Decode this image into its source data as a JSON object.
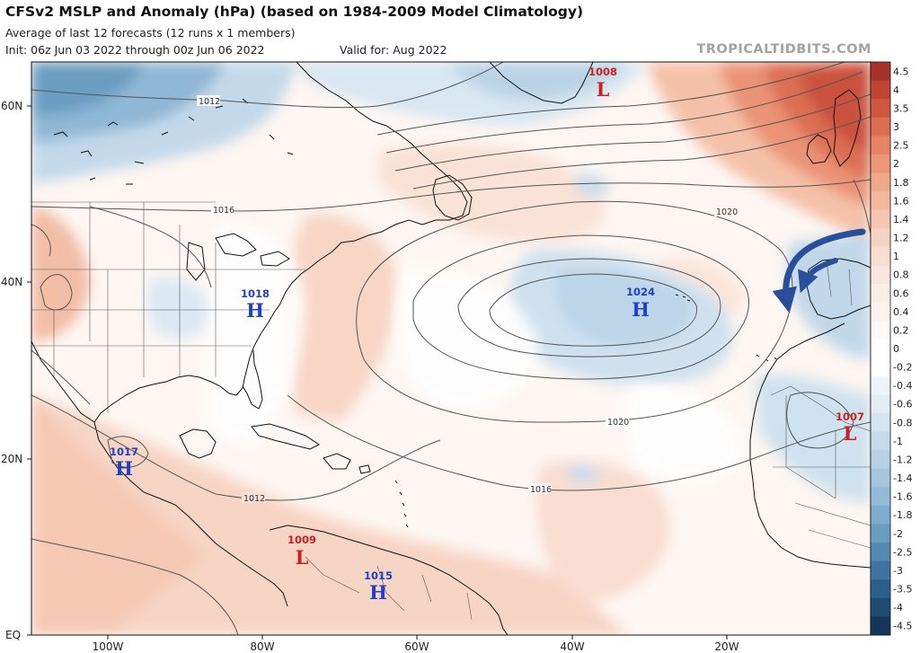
{
  "header": {
    "title": "CFSv2 MSLP and Anomaly (hPa) (based on 1984-2009 Model Climatology)",
    "subtitle": "Average of last 12 forecasts (12 runs x 1 members)",
    "init": "Init: 06z Jun 03 2022 through 00z Jun 06 2022",
    "valid": "Valid for: Aug 2022",
    "brand": "TROPICALTIDBITS.COM"
  },
  "map": {
    "lat_labels": [
      "60N",
      "40N",
      "20N",
      "EQ"
    ],
    "lon_labels": [
      "100W",
      "80W",
      "60W",
      "40W",
      "20W"
    ],
    "isobar_labels": [
      "1012",
      "1016",
      "1020",
      "1020",
      "1016",
      "1012"
    ],
    "pressure_centers": [
      {
        "kind": "low",
        "letter": "L",
        "value": "1008",
        "color": "#cc1f1f"
      },
      {
        "kind": "high",
        "letter": "H",
        "value": "1018",
        "color": "#1f3fcc"
      },
      {
        "kind": "high",
        "letter": "H",
        "value": "1024",
        "color": "#1f3fcc"
      },
      {
        "kind": "high",
        "letter": "H",
        "value": "1017",
        "color": "#1f3fcc"
      },
      {
        "kind": "low",
        "letter": "L",
        "value": "1007",
        "color": "#cc1f1f"
      },
      {
        "kind": "low",
        "letter": "L",
        "value": "1009",
        "color": "#cc1f1f"
      },
      {
        "kind": "high",
        "letter": "H",
        "value": "1015",
        "color": "#1f3fcc"
      }
    ],
    "annotation_arrows": {
      "count": 2,
      "color": "#2a4f9a"
    }
  },
  "colorbar": {
    "labels": [
      "4.5",
      "4",
      "3.5",
      "3",
      "2.5",
      "2",
      "1.8",
      "1.6",
      "1.4",
      "1.2",
      "1",
      "0.8",
      "0.6",
      "0.4",
      "0.2",
      "0",
      "-0.2",
      "-0.4",
      "-0.6",
      "-0.8",
      "-1",
      "-1.2",
      "-1.4",
      "-1.6",
      "-1.8",
      "-2",
      "-2.5",
      "-3",
      "-3.5",
      "-4",
      "-4.5"
    ],
    "colors": [
      "#a8312b",
      "#bf4535",
      "#d0573f",
      "#dd6d52",
      "#e68465",
      "#ec9878",
      "#f0a98b",
      "#f3b89e",
      "#f5c6b1",
      "#f7d3c3",
      "#f9ddd1",
      "#fae6dc",
      "#fcede6",
      "#fdf3ee",
      "#fef9f6",
      "#ffffff",
      "#ffffff",
      "#eef4f9",
      "#e2edf5",
      "#d5e5f0",
      "#c6dbea",
      "#b6d1e4",
      "#a5c6dd",
      "#93bad6",
      "#7faccc",
      "#6a9dc2",
      "#5489b4",
      "#3f74a2",
      "#2d5f8c",
      "#1f4a72",
      "#13365a"
    ]
  }
}
